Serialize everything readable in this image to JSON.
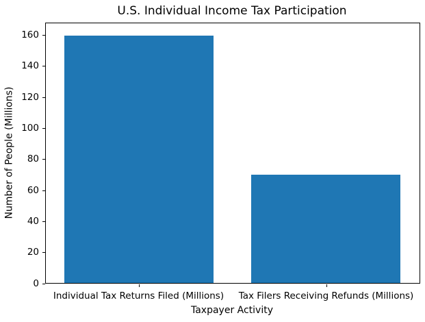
{
  "chart_data": {
    "type": "bar",
    "title": "U.S. Individual Income Tax Participation",
    "xlabel": "Taxpayer Activity",
    "ylabel": "Number of People (Millions)",
    "categories": [
      "Individual Tax Returns Filed (Millions)",
      "Tax Filers Receiving Refunds (Millions)"
    ],
    "values": [
      160,
      70
    ],
    "yticks": [
      0,
      20,
      40,
      60,
      80,
      100,
      120,
      140,
      160
    ],
    "ylim": [
      0,
      168
    ],
    "x_range": [
      -0.5,
      1.5
    ],
    "bar_width_fraction": 0.8,
    "grid": false,
    "legend_position": "none",
    "bar_color": "#1f77b4",
    "text_color": "#000000",
    "spine_color": "#000000",
    "background_color": "#ffffff"
  }
}
